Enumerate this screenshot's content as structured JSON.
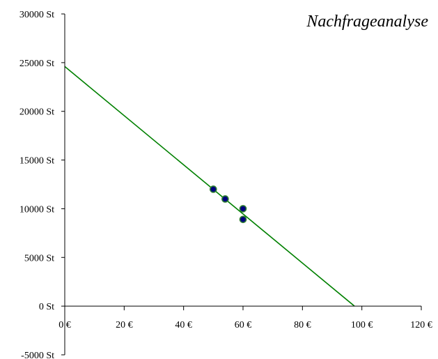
{
  "chart_data": {
    "type": "scatter",
    "title": "Nachfrageanalyse",
    "xlabel": "",
    "ylabel": "",
    "xlim": [
      0,
      120
    ],
    "ylim": [
      -5000,
      30000
    ],
    "x_ticks": [
      0,
      20,
      40,
      60,
      80,
      100,
      120
    ],
    "y_ticks": [
      -5000,
      0,
      5000,
      10000,
      15000,
      20000,
      25000,
      30000
    ],
    "x_tick_labels": [
      "0 €",
      "20 €",
      "40 €",
      "60 €",
      "80 €",
      "100 €",
      "120 €"
    ],
    "y_tick_labels": [
      "-5000 St",
      "0 St",
      "5000 St",
      "10000 St",
      "15000 St",
      "20000 St",
      "25000 St",
      "30000 St"
    ],
    "grid": false,
    "legend": "none",
    "series": [
      {
        "type": "scatter",
        "color": "#000080",
        "edge_color": "#2e7d32",
        "points": [
          {
            "x": 50,
            "y": 12000
          },
          {
            "x": 54,
            "y": 11000
          },
          {
            "x": 60,
            "y": 10000
          },
          {
            "x": 60,
            "y": 8900
          }
        ]
      },
      {
        "type": "line",
        "color": "#008000",
        "points": [
          {
            "x": 0,
            "y": 24600
          },
          {
            "x": 97.5,
            "y": 0
          }
        ]
      }
    ]
  }
}
